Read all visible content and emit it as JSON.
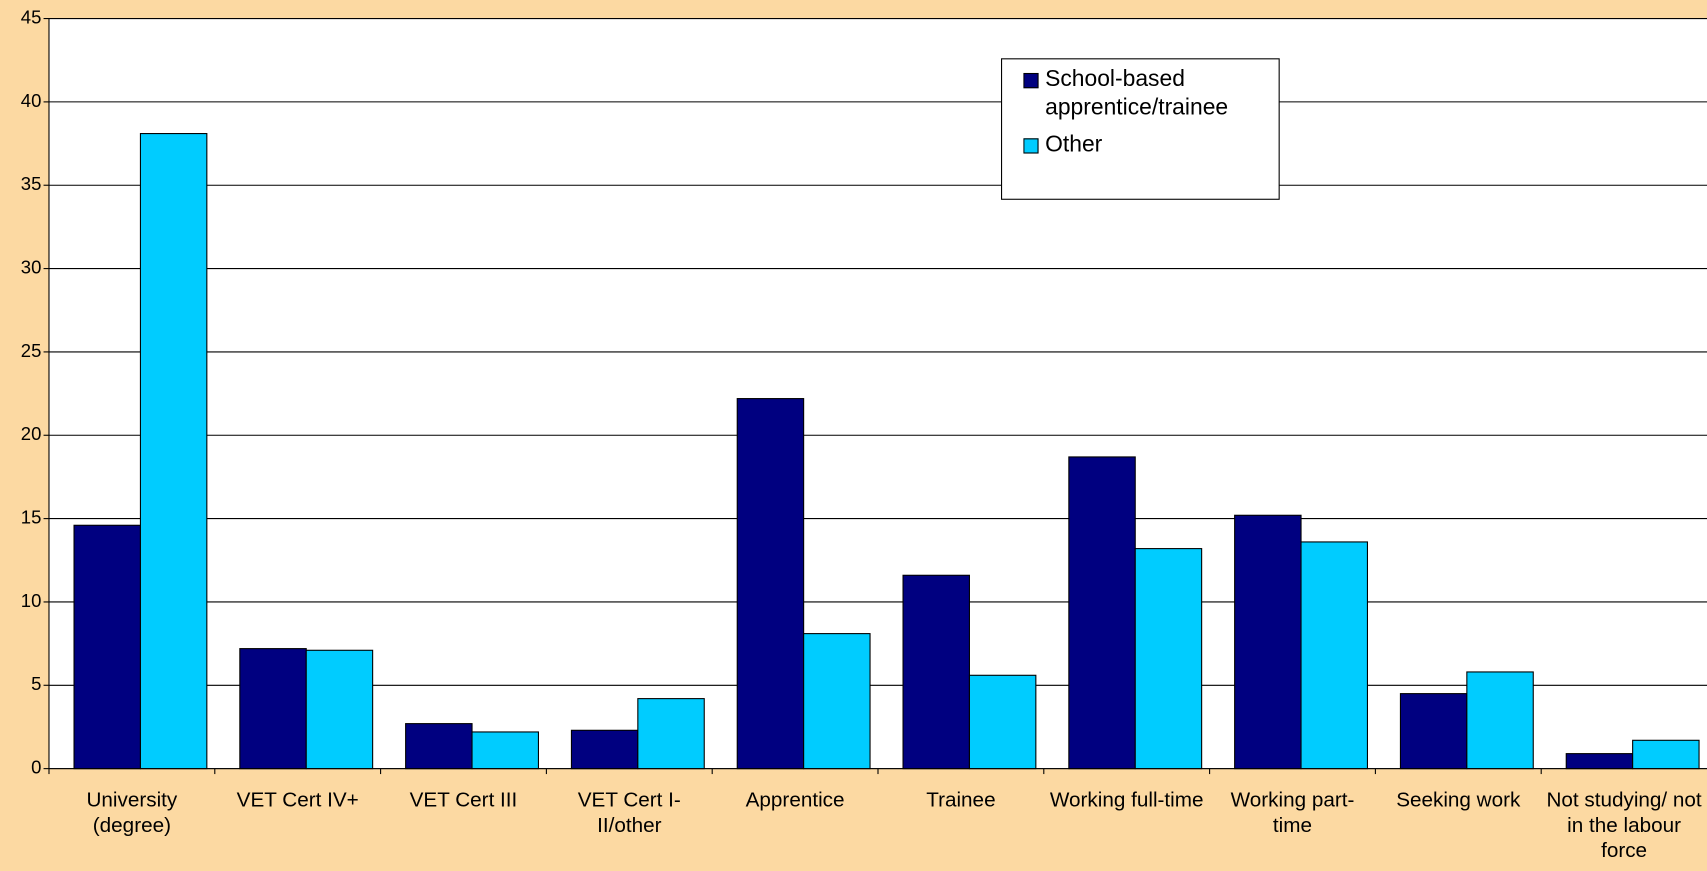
{
  "chart_data": {
    "type": "bar",
    "categories": [
      "University (degree)",
      "VET Cert IV+",
      "VET Cert III",
      "VET Cert I-II/other",
      "Apprentice",
      "Trainee",
      "Working full-time",
      "Working part-time",
      "Seeking work",
      "Not studying/ not in the labour force"
    ],
    "series": [
      {
        "name": "School-based apprentice/trainee",
        "color": "#000080",
        "values": [
          14.6,
          7.2,
          2.7,
          2.3,
          22.2,
          11.6,
          18.7,
          15.2,
          4.5,
          0.9
        ]
      },
      {
        "name": "Other",
        "color": "#00ccff",
        "values": [
          38.1,
          7.1,
          2.2,
          4.2,
          8.1,
          5.6,
          13.2,
          13.6,
          5.8,
          1.7
        ]
      }
    ],
    "ylim": [
      0,
      45
    ],
    "yticks": [
      0,
      5,
      10,
      15,
      20,
      25,
      30,
      35,
      40,
      45
    ],
    "grid": true,
    "legend": "top-right"
  }
}
